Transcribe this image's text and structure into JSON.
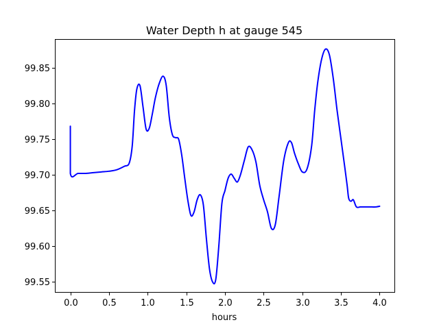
{
  "chart_data": {
    "type": "line",
    "title": "Water Depth h at gauge 545",
    "xlabel": "hours",
    "ylabel": "",
    "xlim": [
      -0.2,
      4.2
    ],
    "ylim": [
      99.535,
      99.89
    ],
    "xticks": [
      0.0,
      0.5,
      1.0,
      1.5,
      2.0,
      2.5,
      3.0,
      3.5,
      4.0
    ],
    "xtick_labels": [
      "0.0",
      "0.5",
      "1.0",
      "1.5",
      "2.0",
      "2.5",
      "3.0",
      "3.5",
      "4.0"
    ],
    "yticks": [
      99.55,
      99.6,
      99.65,
      99.7,
      99.75,
      99.8,
      99.85
    ],
    "ytick_labels": [
      "99.55",
      "99.60",
      "99.65",
      "99.70",
      "99.75",
      "99.80",
      "99.85"
    ],
    "grid": false,
    "series": [
      {
        "name": "",
        "color": "#0000ff",
        "x": [
          0.0,
          0.0,
          0.1,
          0.2,
          0.3,
          0.4,
          0.5,
          0.6,
          0.7,
          0.76,
          0.8,
          0.83,
          0.86,
          0.9,
          0.94,
          0.98,
          1.02,
          1.06,
          1.1,
          1.15,
          1.2,
          1.24,
          1.28,
          1.32,
          1.36,
          1.4,
          1.44,
          1.48,
          1.52,
          1.56,
          1.6,
          1.64,
          1.68,
          1.72,
          1.76,
          1.8,
          1.84,
          1.88,
          1.92,
          1.96,
          2.0,
          2.04,
          2.08,
          2.12,
          2.16,
          2.2,
          2.25,
          2.3,
          2.35,
          2.4,
          2.45,
          2.5,
          2.55,
          2.6,
          2.65,
          2.7,
          2.76,
          2.82,
          2.86,
          2.9,
          2.95,
          3.0,
          3.06,
          3.12,
          3.16,
          3.2,
          3.25,
          3.3,
          3.35,
          3.4,
          3.45,
          3.5,
          3.55,
          3.58,
          3.6,
          3.63,
          3.66,
          3.7,
          3.75,
          3.8,
          3.85,
          3.9,
          3.95,
          4.0
        ],
        "y": [
          99.768,
          99.702,
          99.702,
          99.702,
          99.703,
          99.704,
          99.705,
          99.707,
          99.712,
          99.716,
          99.74,
          99.79,
          99.82,
          99.825,
          99.795,
          99.764,
          99.765,
          99.785,
          99.808,
          99.828,
          99.838,
          99.825,
          99.78,
          99.756,
          99.752,
          99.75,
          99.728,
          99.695,
          99.664,
          99.643,
          99.648,
          99.665,
          99.672,
          99.658,
          99.61,
          99.568,
          99.55,
          99.553,
          99.6,
          99.66,
          99.678,
          99.695,
          99.701,
          99.695,
          99.69,
          99.7,
          99.72,
          99.739,
          99.735,
          99.718,
          99.685,
          99.665,
          99.648,
          99.625,
          99.63,
          99.67,
          99.72,
          99.745,
          99.745,
          99.73,
          99.715,
          99.704,
          99.708,
          99.74,
          99.79,
          99.83,
          99.862,
          99.876,
          99.868,
          99.835,
          99.79,
          99.75,
          99.71,
          99.685,
          99.667,
          99.663,
          99.665,
          99.655,
          99.655,
          99.655,
          99.655,
          99.655,
          99.655,
          99.656
        ]
      }
    ]
  }
}
